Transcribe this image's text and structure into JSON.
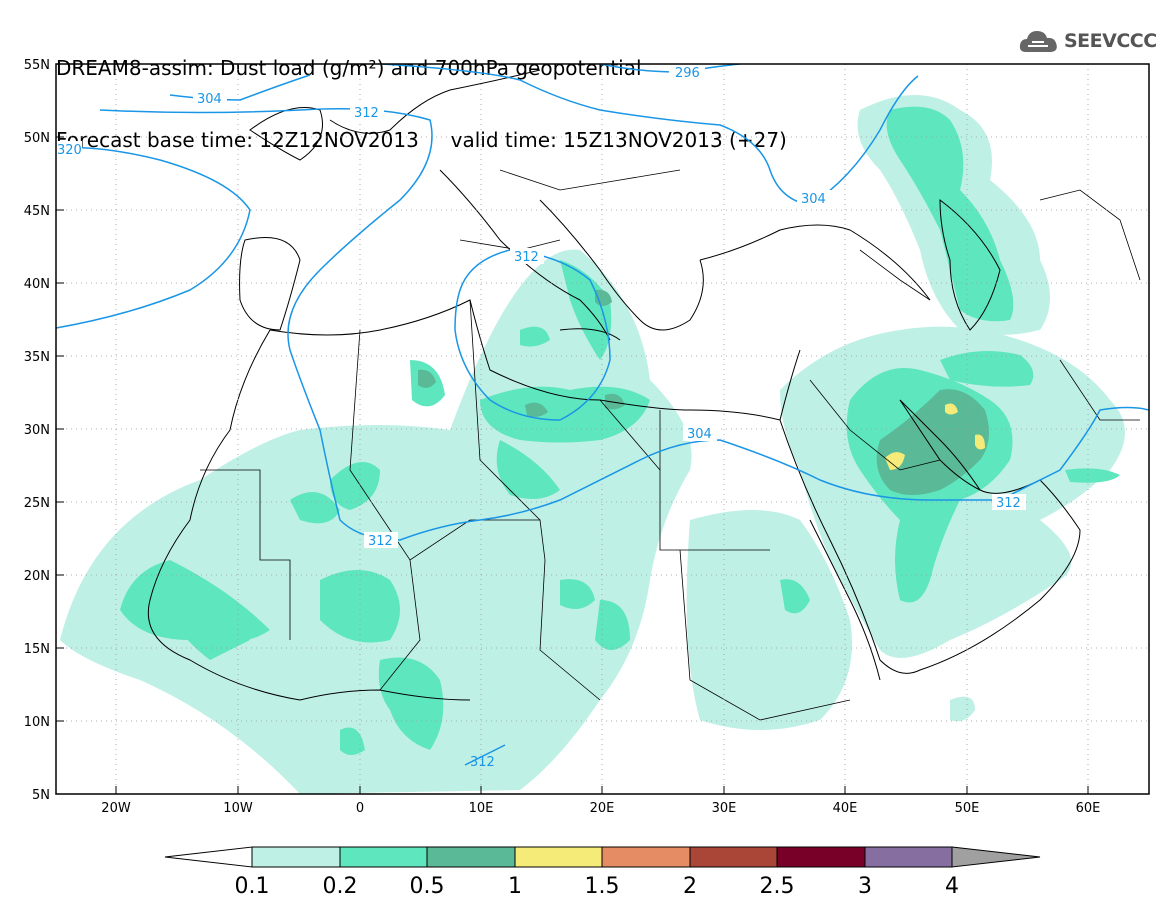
{
  "title": {
    "line1": "DREAM8-assim: Dust load (g/m²) and 700hPa geopotential",
    "line2": "Forecast base time: 12Z12NOV2013     valid time: 15Z13NOV2013 (+27)"
  },
  "logo": {
    "text": "SEEVCCC",
    "icon": "cloud-icon"
  },
  "map": {
    "lat_labels": [
      "55N",
      "50N",
      "45N",
      "40N",
      "35N",
      "30N",
      "25N",
      "20N",
      "15N",
      "10N",
      "5N"
    ],
    "lon_labels": [
      "20W",
      "10W",
      "0",
      "10E",
      "20E",
      "30E",
      "40E",
      "50E",
      "60E"
    ],
    "contour_labels": [
      "296",
      "304",
      "312",
      "320",
      "304",
      "312",
      "304",
      "312",
      "312",
      "312"
    ],
    "colors": {
      "coast": "#000000",
      "contour": "#1a96e6",
      "grid": "#999999"
    }
  },
  "colorbar": {
    "tick_labels": [
      "0.1",
      "0.2",
      "0.5",
      "1",
      "1.5",
      "2",
      "2.5",
      "3",
      "4"
    ],
    "bins": [
      {
        "color": "#ffffff"
      },
      {
        "color": "#bff0e6"
      },
      {
        "color": "#5ee6be"
      },
      {
        "color": "#5ab996"
      },
      {
        "color": "#f5eb78"
      },
      {
        "color": "#e68c64"
      },
      {
        "color": "#aa4637"
      },
      {
        "color": "#780028"
      },
      {
        "color": "#876ea0"
      },
      {
        "color": "#a0a0a0"
      }
    ]
  }
}
